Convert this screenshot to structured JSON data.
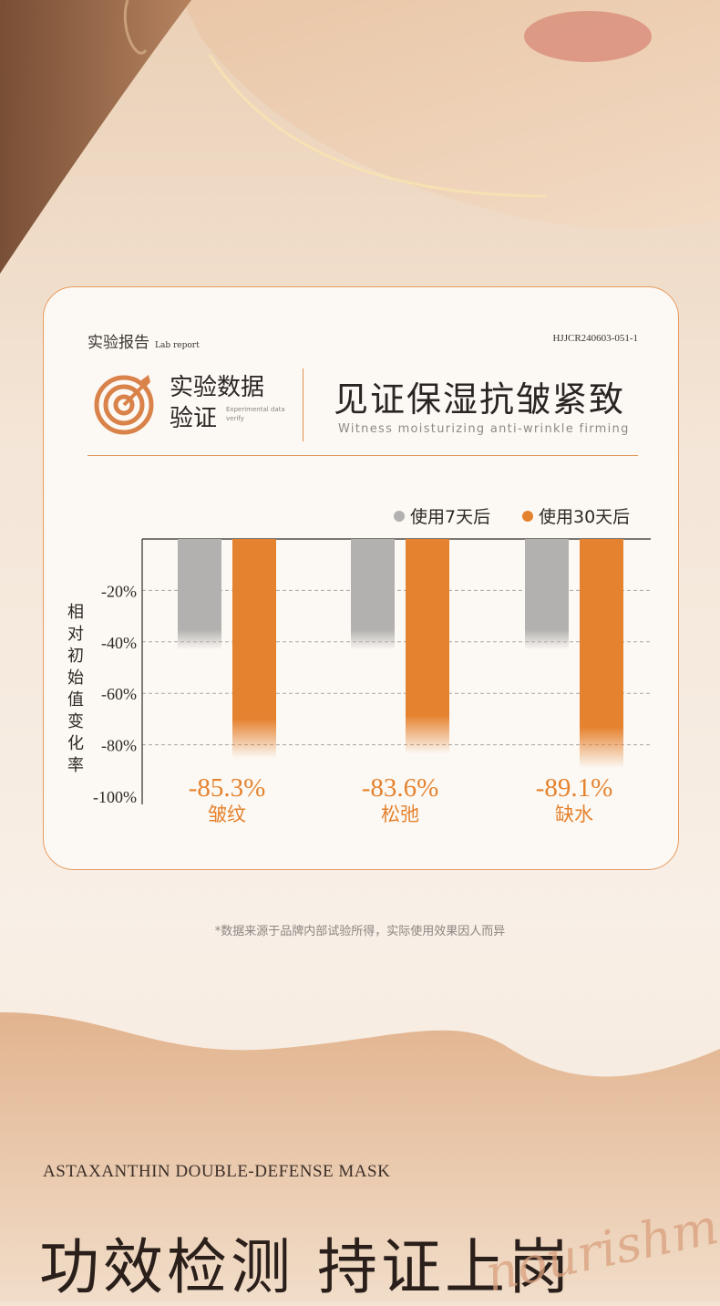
{
  "header": {
    "lab_cn": "实验报告",
    "lab_en": "Lab report",
    "report_code": "HJJCR240603-051-1"
  },
  "badge": {
    "line1": "实验数据",
    "line2": "验证",
    "en": "Experimental data verify"
  },
  "headline": {
    "cn": "见证保湿抗皱紧致",
    "en": "Witness moisturizing anti-wrinkle firming"
  },
  "chart_data": {
    "type": "bar",
    "categories": [
      "皱纹",
      "松弛",
      "缺水"
    ],
    "series": [
      {
        "name": "使用7天后",
        "color": "#b3b1af",
        "values": [
          -43,
          -43,
          -43
        ]
      },
      {
        "name": "使用30天后",
        "color": "#e5822f",
        "values": [
          -85.3,
          -83.6,
          -89.1
        ]
      }
    ],
    "data_labels": [
      "-85.3%",
      "-83.6%",
      "-89.1%"
    ],
    "ylabel": "相对初始值变化率",
    "yticks": [
      "-20%",
      "-40%",
      "-60%",
      "-80%",
      "-100%"
    ],
    "ylim": [
      -100,
      0
    ],
    "grid": true,
    "legend_position": "top-right"
  },
  "footnote": "*数据来源于品牌内部试验所得，实际使用效果因人而异",
  "product": "ASTAXANTHIN DOUBLE-DEFENSE MASK",
  "bottom_title": "功效检测 持证上岗",
  "script_word": "nourishment"
}
